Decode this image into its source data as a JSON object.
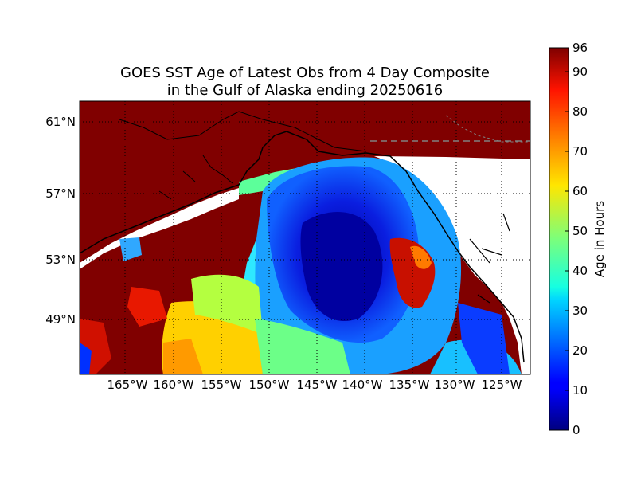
{
  "title": {
    "line1": "GOES SST Age of Latest Obs from 4 Day Composite",
    "line2": "in the Gulf of Alaska ending 20250616"
  },
  "map": {
    "region": "Gulf of Alaska",
    "lon_labels": [
      "165°W",
      "160°W",
      "155°W",
      "150°W",
      "145°W",
      "140°W",
      "135°W",
      "130°W",
      "125°W"
    ],
    "lat_labels": [
      "61°N",
      "57°N",
      "53°N",
      "49°N"
    ],
    "colors": {
      "no_data_max": "#800000",
      "land": "#ffffff",
      "coastline": "#000000",
      "gridline": "#000000",
      "border": "#808080"
    }
  },
  "colorbar": {
    "label": "Age in Hours",
    "min": 0,
    "max": 96,
    "tick_labels": [
      "0",
      "10",
      "20",
      "30",
      "40",
      "50",
      "60",
      "70",
      "80",
      "90",
      "96"
    ],
    "colormap": "jet"
  }
}
